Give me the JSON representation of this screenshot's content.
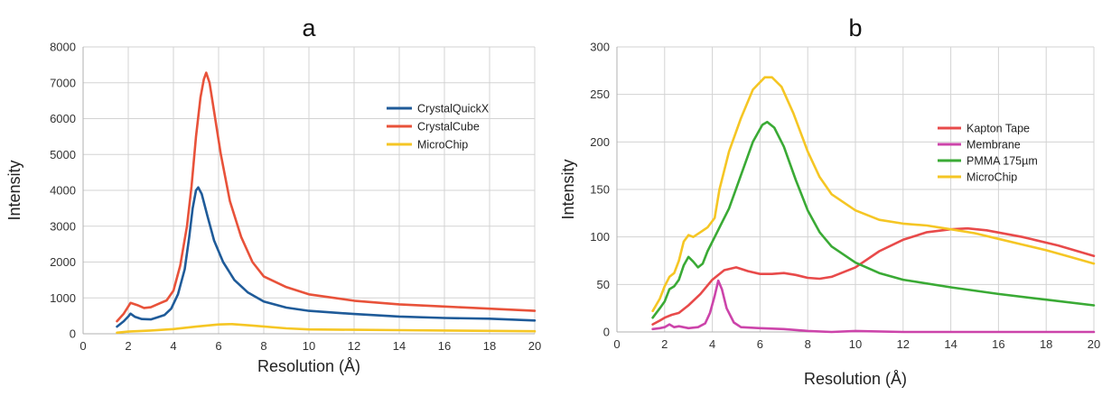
{
  "panels": [
    {
      "letter": "a",
      "chart_data": {
        "type": "line",
        "title": "a",
        "xlabel": "Resolution (Å)",
        "ylabel": "Intensity",
        "xlim": [
          0,
          20
        ],
        "ylim": [
          0,
          8000
        ],
        "x_ticks": [
          0,
          2,
          4,
          6,
          8,
          10,
          12,
          14,
          16,
          18,
          20
        ],
        "y_ticks": [
          0,
          1000,
          2000,
          3000,
          4000,
          5000,
          6000,
          7000,
          8000
        ],
        "grid": true,
        "legend_position": "top-right",
        "series": [
          {
            "name": "CrystalQuickX",
            "color": "#1f5b99",
            "points": [
              [
                1.5,
                200
              ],
              [
                1.8,
                350
              ],
              [
                2.0,
                480
              ],
              [
                2.1,
                560
              ],
              [
                2.3,
                470
              ],
              [
                2.6,
                410
              ],
              [
                3.0,
                400
              ],
              [
                3.3,
                460
              ],
              [
                3.6,
                520
              ],
              [
                3.9,
                700
              ],
              [
                4.2,
                1100
              ],
              [
                4.5,
                1800
              ],
              [
                4.7,
                2700
              ],
              [
                4.85,
                3500
              ],
              [
                5.0,
                4000
              ],
              [
                5.1,
                4080
              ],
              [
                5.25,
                3900
              ],
              [
                5.5,
                3300
              ],
              [
                5.8,
                2600
              ],
              [
                6.2,
                2000
              ],
              [
                6.7,
                1500
              ],
              [
                7.3,
                1150
              ],
              [
                8.0,
                900
              ],
              [
                9.0,
                730
              ],
              [
                10.0,
                640
              ],
              [
                12.0,
                550
              ],
              [
                14.0,
                480
              ],
              [
                16.0,
                440
              ],
              [
                18.0,
                420
              ],
              [
                20.0,
                370
              ]
            ]
          },
          {
            "name": "CrystalCube",
            "color": "#e8523a",
            "points": [
              [
                1.5,
                350
              ],
              [
                1.8,
                560
              ],
              [
                2.0,
                760
              ],
              [
                2.1,
                860
              ],
              [
                2.4,
                800
              ],
              [
                2.7,
                720
              ],
              [
                3.0,
                740
              ],
              [
                3.4,
                850
              ],
              [
                3.7,
                930
              ],
              [
                4.0,
                1200
              ],
              [
                4.3,
                1900
              ],
              [
                4.6,
                3000
              ],
              [
                4.8,
                4100
              ],
              [
                5.0,
                5500
              ],
              [
                5.2,
                6600
              ],
              [
                5.35,
                7100
              ],
              [
                5.45,
                7280
              ],
              [
                5.6,
                7000
              ],
              [
                5.8,
                6200
              ],
              [
                6.1,
                5000
              ],
              [
                6.5,
                3700
              ],
              [
                7.0,
                2700
              ],
              [
                7.5,
                2000
              ],
              [
                8.0,
                1600
              ],
              [
                9.0,
                1300
              ],
              [
                10.0,
                1100
              ],
              [
                12.0,
                920
              ],
              [
                14.0,
                820
              ],
              [
                16.0,
                760
              ],
              [
                18.0,
                700
              ],
              [
                20.0,
                640
              ]
            ]
          },
          {
            "name": "MicroChip",
            "color": "#f5c624",
            "points": [
              [
                1.5,
                30
              ],
              [
                2.0,
                60
              ],
              [
                3.0,
                90
              ],
              [
                4.0,
                130
              ],
              [
                5.0,
                200
              ],
              [
                6.0,
                260
              ],
              [
                6.6,
                270
              ],
              [
                7.5,
                230
              ],
              [
                9.0,
                150
              ],
              [
                10.0,
                120
              ],
              [
                12.0,
                110
              ],
              [
                14.0,
                100
              ],
              [
                16.0,
                90
              ],
              [
                18.0,
                80
              ],
              [
                20.0,
                70
              ]
            ]
          }
        ]
      }
    },
    {
      "letter": "b",
      "chart_data": {
        "type": "line",
        "title": "b",
        "xlabel": "Resolution (Å)",
        "ylabel": "Intensity",
        "xlim": [
          0,
          20
        ],
        "ylim": [
          0,
          300
        ],
        "x_ticks": [
          0,
          2,
          4,
          6,
          8,
          10,
          12,
          14,
          16,
          18,
          20
        ],
        "y_ticks": [
          0,
          50,
          100,
          150,
          200,
          250,
          300
        ],
        "grid": true,
        "legend_position": "right",
        "series": [
          {
            "name": "Kapton Tape",
            "color": "#e84a4a",
            "points": [
              [
                1.5,
                8
              ],
              [
                1.8,
                12
              ],
              [
                2.0,
                15
              ],
              [
                2.3,
                18
              ],
              [
                2.6,
                20
              ],
              [
                3.0,
                28
              ],
              [
                3.5,
                40
              ],
              [
                4.0,
                55
              ],
              [
                4.5,
                65
              ],
              [
                5.0,
                68
              ],
              [
                5.5,
                64
              ],
              [
                6.0,
                61
              ],
              [
                6.5,
                61
              ],
              [
                7.0,
                62
              ],
              [
                7.5,
                60
              ],
              [
                8.0,
                57
              ],
              [
                8.5,
                56
              ],
              [
                9.0,
                58
              ],
              [
                10.0,
                68
              ],
              [
                11.0,
                85
              ],
              [
                12.0,
                97
              ],
              [
                13.0,
                105
              ],
              [
                14.0,
                108
              ],
              [
                14.7,
                109
              ],
              [
                15.5,
                107
              ],
              [
                17.0,
                100
              ],
              [
                18.5,
                91
              ],
              [
                20.0,
                80
              ]
            ]
          },
          {
            "name": "Membrane",
            "color": "#cc44aa",
            "points": [
              [
                1.5,
                3
              ],
              [
                1.8,
                4
              ],
              [
                2.0,
                5
              ],
              [
                2.2,
                8
              ],
              [
                2.4,
                5
              ],
              [
                2.6,
                6
              ],
              [
                3.0,
                4
              ],
              [
                3.4,
                5
              ],
              [
                3.7,
                9
              ],
              [
                3.9,
                20
              ],
              [
                4.1,
                38
              ],
              [
                4.25,
                54
              ],
              [
                4.4,
                45
              ],
              [
                4.6,
                25
              ],
              [
                4.9,
                10
              ],
              [
                5.2,
                5
              ],
              [
                6.0,
                4
              ],
              [
                7.0,
                3
              ],
              [
                8.0,
                1
              ],
              [
                9.0,
                0
              ],
              [
                10.0,
                1
              ],
              [
                12.0,
                0
              ],
              [
                14.0,
                0
              ],
              [
                16.0,
                0
              ],
              [
                18.0,
                0
              ],
              [
                20.0,
                0
              ]
            ]
          },
          {
            "name": "PMMA 175µm",
            "color": "#3aaa35",
            "points": [
              [
                1.5,
                15
              ],
              [
                1.8,
                25
              ],
              [
                2.0,
                32
              ],
              [
                2.2,
                45
              ],
              [
                2.4,
                48
              ],
              [
                2.6,
                55
              ],
              [
                2.8,
                70
              ],
              [
                3.0,
                79
              ],
              [
                3.2,
                74
              ],
              [
                3.4,
                68
              ],
              [
                3.6,
                72
              ],
              [
                3.8,
                85
              ],
              [
                4.2,
                105
              ],
              [
                4.7,
                130
              ],
              [
                5.2,
                165
              ],
              [
                5.7,
                200
              ],
              [
                6.1,
                218
              ],
              [
                6.3,
                221
              ],
              [
                6.6,
                215
              ],
              [
                7.0,
                195
              ],
              [
                7.5,
                160
              ],
              [
                8.0,
                128
              ],
              [
                8.5,
                105
              ],
              [
                9.0,
                90
              ],
              [
                10.0,
                73
              ],
              [
                11.0,
                62
              ],
              [
                12.0,
                55
              ],
              [
                14.0,
                47
              ],
              [
                16.0,
                40
              ],
              [
                18.0,
                34
              ],
              [
                20.0,
                28
              ]
            ]
          },
          {
            "name": "MicroChip",
            "color": "#f5c624",
            "points": [
              [
                1.5,
                22
              ],
              [
                1.8,
                35
              ],
              [
                2.0,
                48
              ],
              [
                2.2,
                58
              ],
              [
                2.4,
                62
              ],
              [
                2.6,
                75
              ],
              [
                2.8,
                95
              ],
              [
                3.0,
                102
              ],
              [
                3.2,
                100
              ],
              [
                3.5,
                105
              ],
              [
                3.8,
                110
              ],
              [
                4.1,
                120
              ],
              [
                4.3,
                150
              ],
              [
                4.7,
                190
              ],
              [
                5.2,
                225
              ],
              [
                5.7,
                255
              ],
              [
                6.2,
                268
              ],
              [
                6.5,
                268
              ],
              [
                6.9,
                258
              ],
              [
                7.4,
                230
              ],
              [
                8.0,
                190
              ],
              [
                8.5,
                163
              ],
              [
                9.0,
                145
              ],
              [
                10.0,
                128
              ],
              [
                11.0,
                118
              ],
              [
                12.0,
                114
              ],
              [
                13.0,
                112
              ],
              [
                14.0,
                108
              ],
              [
                15.0,
                104
              ],
              [
                16.0,
                98
              ],
              [
                17.0,
                92
              ],
              [
                18.0,
                86
              ],
              [
                19.0,
                79
              ],
              [
                20.0,
                72
              ]
            ]
          }
        ]
      }
    }
  ]
}
